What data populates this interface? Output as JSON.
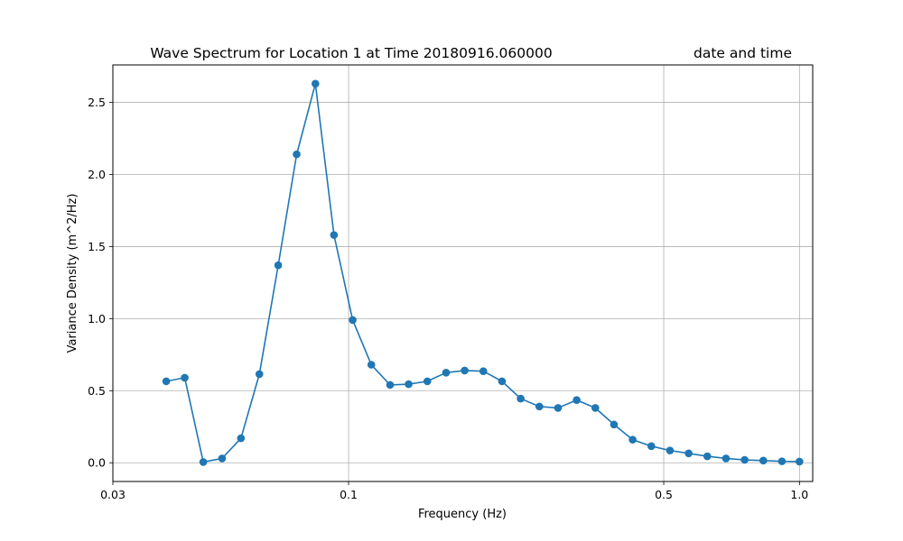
{
  "chart_data": {
    "type": "line",
    "title": "Wave Spectrum for Location 1 at Time 20180916.060000",
    "title_right": "date and time",
    "xlabel": "Frequency (Hz)",
    "ylabel": "Variance Density (m^2/Hz)",
    "x_scale": "log",
    "xlim": [
      0.03,
      1.07
    ],
    "ylim": [
      -0.13,
      2.76
    ],
    "x_ticks": [
      0.03,
      0.1,
      0.5,
      1.0
    ],
    "x_tick_labels": [
      "0.03",
      "0.1",
      "0.5",
      "1.0"
    ],
    "y_ticks": [
      0.0,
      0.5,
      1.0,
      1.5,
      2.0,
      2.5
    ],
    "y_tick_labels": [
      "0.0",
      "0.5",
      "1.0",
      "1.5",
      "2.0",
      "2.5"
    ],
    "grid": true,
    "series": [
      {
        "color": "#1f77b4",
        "marker": "circle",
        "x": [
          0.0394,
          0.0433,
          0.0476,
          0.0524,
          0.0577,
          0.0634,
          0.0698,
          0.0767,
          0.0844,
          0.0928,
          0.1021,
          0.1123,
          0.1236,
          0.1359,
          0.1495,
          0.1645,
          0.1809,
          0.199,
          0.2189,
          0.2408,
          0.2649,
          0.2914,
          0.3205,
          0.3526,
          0.3878,
          0.4266,
          0.4693,
          0.5162,
          0.5679,
          0.6246,
          0.6871,
          0.7558,
          0.8314,
          0.9145,
          1.0
        ],
        "y": [
          0.565,
          0.59,
          0.005,
          0.03,
          0.17,
          0.615,
          1.37,
          2.14,
          2.63,
          1.58,
          0.99,
          0.68,
          0.54,
          0.545,
          0.565,
          0.625,
          0.64,
          0.635,
          0.565,
          0.445,
          0.39,
          0.38,
          0.435,
          0.38,
          0.265,
          0.16,
          0.115,
          0.085,
          0.065,
          0.045,
          0.03,
          0.02,
          0.015,
          0.01,
          0.008
        ]
      }
    ]
  }
}
